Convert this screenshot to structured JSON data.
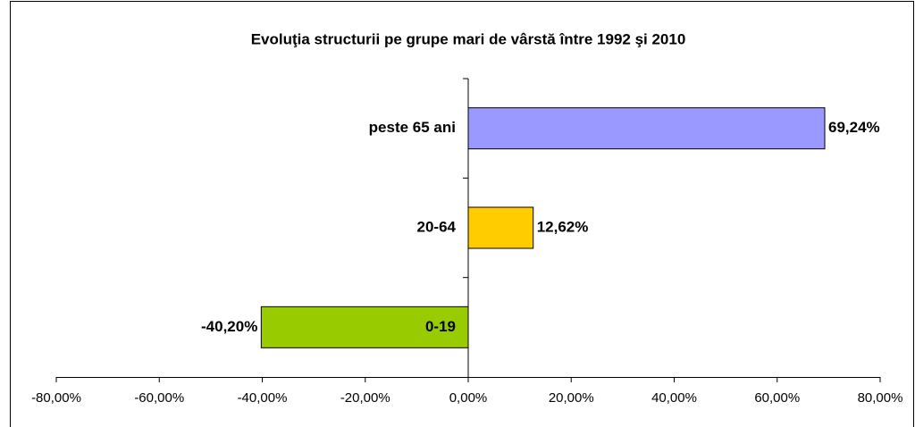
{
  "chart_data": {
    "type": "bar",
    "orientation": "horizontal",
    "title": "Evoluţia structurii pe grupe mari de vârstă între 1992 şi 2010",
    "categories": [
      "0-19",
      "20-64",
      "peste 65 ani"
    ],
    "values": [
      -40.2,
      12.62,
      69.24
    ],
    "value_labels": [
      "-40,20%",
      "12,62%",
      "69,24%"
    ],
    "colors": [
      "#99cc00",
      "#ffcc00",
      "#9999ff"
    ],
    "xlim": [
      -80,
      80
    ],
    "xticks": [
      {
        "value": -80,
        "label": "-80,00%"
      },
      {
        "value": -60,
        "label": "-60,00%"
      },
      {
        "value": -40,
        "label": "-40,00%"
      },
      {
        "value": -20,
        "label": "-20,00%"
      },
      {
        "value": 0,
        "label": "0,00%"
      },
      {
        "value": 20,
        "label": "20,00%"
      },
      {
        "value": 40,
        "label": "40,00%"
      },
      {
        "value": 60,
        "label": "60,00%"
      },
      {
        "value": 80,
        "label": "80,00%"
      }
    ],
    "grid": false
  }
}
